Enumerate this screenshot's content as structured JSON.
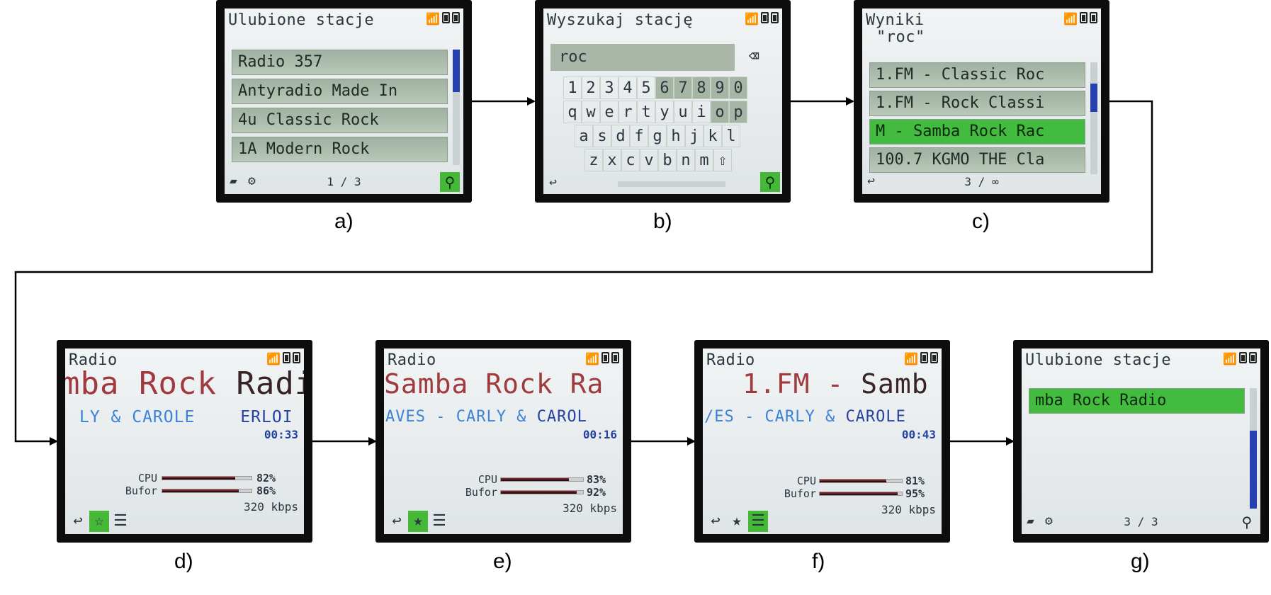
{
  "colors": {
    "list_row": "#a9bba9",
    "selected": "#43bb3e",
    "title_red": "#a03a3e",
    "artist_blue": "#3b83d8",
    "scroll_blue": "#2540b0",
    "bar_fill": "#7a1f24"
  },
  "screens": {
    "a": {
      "caption": "a)",
      "header": "Ulubione stacje",
      "items": [
        "Radio 357",
        "Antyradio Made In",
        "4u Classic Rock",
        "1A Modern Rock"
      ],
      "page": "1 / 3",
      "folder_icon": "folder-icon",
      "gear_icon": "gear-icon",
      "search_icon": "search-icon"
    },
    "b": {
      "caption": "b)",
      "header": "Wyszukaj stację",
      "input_value": "roc",
      "backspace_icon": "backspace-icon",
      "keyboard": {
        "row1": [
          "1",
          "2",
          "3",
          "4",
          "5",
          "6",
          "7",
          "8",
          "9",
          "0"
        ],
        "row2": [
          "q",
          "w",
          "e",
          "r",
          "t",
          "y",
          "u",
          "i",
          "o",
          "p"
        ],
        "row3": [
          "a",
          "s",
          "d",
          "f",
          "g",
          "h",
          "j",
          "k",
          "l"
        ],
        "row4": [
          "z",
          "x",
          "c",
          "v",
          "b",
          "n",
          "m"
        ]
      },
      "shift_icon": "shift-icon",
      "back_icon": "back-icon",
      "search_icon": "search-icon"
    },
    "c": {
      "caption": "c)",
      "header_line1": "Wyniki",
      "header_line2": "\"roc\"",
      "items": [
        "1.FM - Classic Roc",
        "1.FM - Rock Classi",
        "M - Samba Rock Rac",
        "100.7 KGMO THE Cla"
      ],
      "selected_index": 2,
      "page": "3 / ∞",
      "back_icon": "back-icon"
    },
    "d": {
      "caption": "d)",
      "header": "Radio",
      "title_part1": "mba Rock ",
      "title_part2": "Radi",
      "artist_part1": "LY & CAROLE",
      "artist_part2": "ERLOI",
      "time": "00:33",
      "cpu_label": "CPU",
      "cpu_value": 82,
      "cpu_pct": "82%",
      "buf_label": "Bufor",
      "buf_value": 86,
      "buf_pct": "86%",
      "bitrate": "320 kbps"
    },
    "e": {
      "caption": "e)",
      "header": "Radio",
      "title_part1": "Samba Rock ",
      "title_part2": "Ra",
      "artist_part1": "AVES - CARLY & ",
      "artist_part2": "CAROL",
      "time": "00:16",
      "cpu_label": "CPU",
      "cpu_value": 83,
      "cpu_pct": "83%",
      "buf_label": "Bufor",
      "buf_value": 92,
      "buf_pct": "92%",
      "bitrate": "320 kbps"
    },
    "f": {
      "caption": "f)",
      "header": "Radio",
      "title_part1": "1.FM - ",
      "title_part2": "Samb",
      "artist_part1": "/ES - CARLY & ",
      "artist_part2": "CAROLE",
      "time": "00:43",
      "cpu_label": "CPU",
      "cpu_value": 81,
      "cpu_pct": "81%",
      "buf_label": "Bufor",
      "buf_value": 95,
      "buf_pct": "95%",
      "bitrate": "320 kbps"
    },
    "g": {
      "caption": "g)",
      "header": "Ulubione stacje",
      "items": [
        "mba Rock Radio"
      ],
      "page": "3 / 3"
    }
  }
}
